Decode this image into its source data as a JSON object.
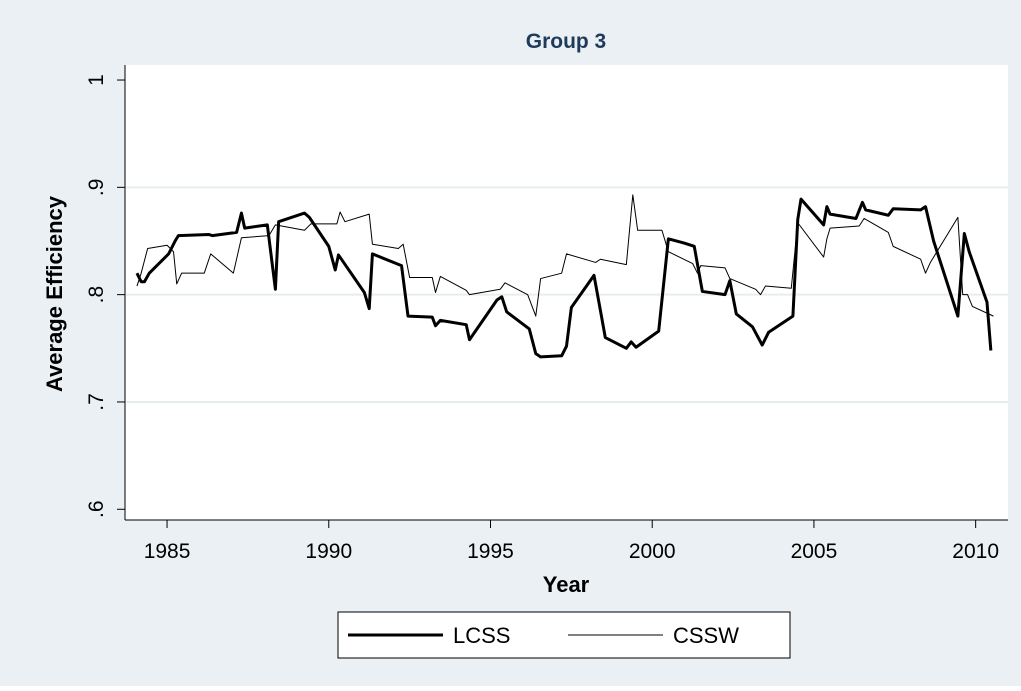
{
  "chart_data": {
    "type": "line",
    "title": "Group 3",
    "x_label": "Year",
    "y_label": "Average Efficiency",
    "xlim": [
      1983.7,
      2011
    ],
    "ylim": [
      0.59,
      1.014
    ],
    "xticks": [
      1985,
      1990,
      1995,
      2000,
      2005,
      2010
    ],
    "yticks": [
      {
        "value": 0.6,
        "label": ".6"
      },
      {
        "value": 0.7,
        "label": ".7"
      },
      {
        "value": 0.8,
        "label": ".8"
      },
      {
        "value": 0.9,
        "label": ".9"
      },
      1
    ],
    "grid": true,
    "legend": "bottom",
    "series": [
      {
        "name": "LCSS",
        "color": "#000000",
        "line_width": 3,
        "x": [
          1984.07,
          1984.2,
          1984.3,
          1984.45,
          1985.05,
          1985.25,
          1985.35,
          1986.3,
          1986.4,
          1987.15,
          1987.3,
          1987.4,
          1988.1,
          1988.35,
          1988.45,
          1989.25,
          1989.4,
          1990.0,
          1990.2,
          1990.3,
          1991.1,
          1991.25,
          1991.35,
          1992.25,
          1992.45,
          1993.2,
          1993.3,
          1993.45,
          1994.25,
          1994.35,
          1995.2,
          1995.35,
          1995.5,
          1996.2,
          1996.4,
          1996.55,
          1997.2,
          1997.35,
          1997.5,
          1998.2,
          1998.4,
          1998.55,
          1999.2,
          1999.35,
          1999.5,
          2000.2,
          2000.5,
          2001.0,
          2001.3,
          2001.55,
          2002.25,
          2002.4,
          2002.6,
          2003.1,
          2003.4,
          2003.6,
          2004.35,
          2004.5,
          2004.6,
          2005.3,
          2005.4,
          2005.5,
          2006.3,
          2006.5,
          2006.6,
          2007.3,
          2007.45,
          2008.3,
          2008.45,
          2008.7,
          2009.45,
          2009.65,
          2009.8,
          2010.35,
          2010.47
        ],
        "values": [
          0.82,
          0.812,
          0.812,
          0.82,
          0.838,
          0.85,
          0.855,
          0.856,
          0.855,
          0.858,
          0.876,
          0.862,
          0.865,
          0.805,
          0.868,
          0.876,
          0.872,
          0.845,
          0.823,
          0.837,
          0.802,
          0.787,
          0.838,
          0.827,
          0.78,
          0.779,
          0.771,
          0.776,
          0.772,
          0.758,
          0.795,
          0.798,
          0.784,
          0.768,
          0.745,
          0.742,
          0.743,
          0.752,
          0.788,
          0.818,
          0.785,
          0.76,
          0.75,
          0.756,
          0.751,
          0.766,
          0.852,
          0.848,
          0.845,
          0.803,
          0.8,
          0.813,
          0.782,
          0.77,
          0.753,
          0.765,
          0.78,
          0.87,
          0.889,
          0.865,
          0.882,
          0.875,
          0.871,
          0.886,
          0.879,
          0.874,
          0.88,
          0.879,
          0.882,
          0.85,
          0.78,
          0.857,
          0.84,
          0.793,
          0.748
        ]
      },
      {
        "name": "CSSW",
        "color": "#000000",
        "line_width": 1,
        "x": [
          1984.07,
          1984.2,
          1984.4,
          1985.0,
          1985.2,
          1985.3,
          1985.45,
          1986.15,
          1986.35,
          1987.05,
          1987.3,
          1988.15,
          1988.35,
          1989.25,
          1989.45,
          1990.25,
          1990.35,
          1990.5,
          1991.25,
          1991.35,
          1992.15,
          1992.3,
          1992.5,
          1993.2,
          1993.3,
          1993.45,
          1994.25,
          1994.35,
          1995.3,
          1995.45,
          1996.15,
          1996.4,
          1996.55,
          1997.2,
          1997.35,
          1998.25,
          1998.4,
          1999.2,
          1999.4,
          1999.55,
          2000.3,
          2000.5,
          2001.25,
          2001.4,
          2001.5,
          2002.25,
          2002.4,
          2003.2,
          2003.35,
          2003.5,
          2004.3,
          2004.5,
          2005.3,
          2005.4,
          2005.5,
          2006.4,
          2006.55,
          2007.3,
          2007.45,
          2008.3,
          2008.45,
          2008.6,
          2009.45,
          2009.6,
          2009.75,
          2009.9,
          2010.55
        ],
        "values": [
          0.808,
          0.82,
          0.843,
          0.846,
          0.84,
          0.81,
          0.82,
          0.82,
          0.838,
          0.82,
          0.853,
          0.855,
          0.865,
          0.86,
          0.866,
          0.866,
          0.877,
          0.868,
          0.875,
          0.847,
          0.843,
          0.847,
          0.816,
          0.816,
          0.802,
          0.817,
          0.804,
          0.8,
          0.805,
          0.811,
          0.8,
          0.78,
          0.815,
          0.82,
          0.838,
          0.83,
          0.833,
          0.828,
          0.893,
          0.86,
          0.86,
          0.84,
          0.829,
          0.82,
          0.827,
          0.825,
          0.815,
          0.805,
          0.8,
          0.808,
          0.806,
          0.867,
          0.835,
          0.852,
          0.862,
          0.864,
          0.871,
          0.858,
          0.845,
          0.833,
          0.82,
          0.83,
          0.872,
          0.8,
          0.8,
          0.789,
          0.78
        ]
      }
    ]
  }
}
